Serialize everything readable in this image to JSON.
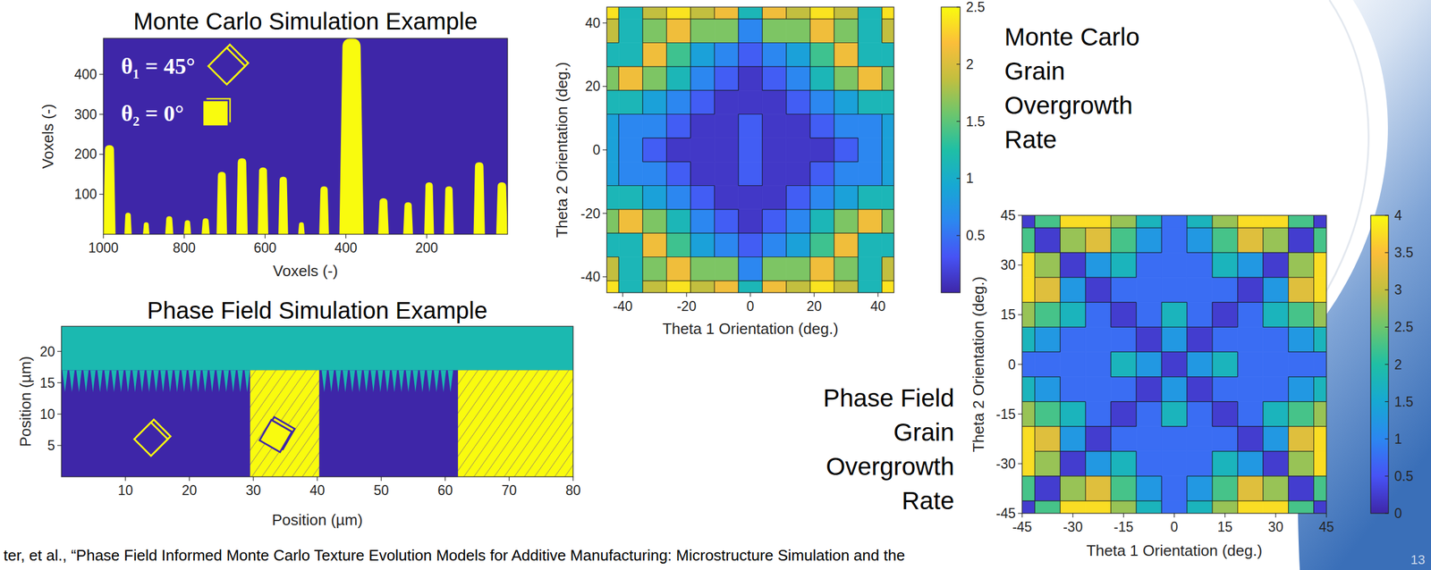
{
  "chart_data": [
    {
      "type": "grain_map",
      "title": "Monte Carlo Simulation Example",
      "x_label": "Voxels (-)",
      "y_label": "Voxels (-)",
      "xlim": [
        1000,
        0
      ],
      "xticks": [
        1000,
        800,
        600,
        400,
        200
      ],
      "ylim": [
        0,
        490
      ],
      "yticks": [
        100,
        200,
        300,
        400
      ],
      "grains": {
        "x": [
          985,
          939,
          894,
          837,
          792,
          747,
          707,
          657,
          605,
          555,
          510,
          454,
          386,
          307,
          246,
          194,
          145,
          70,
          14
        ],
        "width": [
          30,
          18,
          16,
          20,
          18,
          20,
          26,
          28,
          26,
          24,
          16,
          24,
          60,
          26,
          24,
          24,
          24,
          28,
          28
        ],
        "height": [
          223,
          54,
          30,
          45,
          35,
          40,
          156,
          190,
          167,
          144,
          30,
          120,
          490,
          90,
          80,
          130,
          120,
          180,
          130
        ]
      },
      "annotations": [
        {
          "text": "θ₁ = 45°",
          "angle": 45,
          "color": "#3e26a8"
        },
        {
          "text": "θ₂ = 0°",
          "angle": 0,
          "color": "#f9fb0e"
        }
      ]
    },
    {
      "type": "grain_map",
      "title": "Phase Field Simulation Example",
      "x_label": "Position (µm)",
      "y_label": "Position (µm)",
      "xlim": [
        0,
        80
      ],
      "xticks": [
        10,
        20,
        30,
        40,
        50,
        60,
        70,
        80
      ],
      "ylim": [
        0,
        24
      ],
      "yticks": [
        5,
        10,
        15,
        20
      ],
      "mushy_zone": [
        13.5,
        17
      ],
      "grains": {
        "x0": [
          29.5,
          62
        ],
        "x1": [
          40.3,
          80
        ]
      },
      "icons": [
        {
          "x": 14,
          "y": 6,
          "angle": 45,
          "color": "#3e26a8"
        },
        {
          "x": 33.5,
          "y": 6.5,
          "angle": 30,
          "color": "#f9fb0e"
        }
      ]
    },
    {
      "type": "contour",
      "title": "Monte Carlo Grain Overgrowth Rate",
      "x_label": "Theta 1 Orientation (deg.)",
      "y_label": "Theta 2 Orientation (deg.)",
      "xlim": [
        -45,
        45
      ],
      "xticks": [
        -40,
        -20,
        0,
        20,
        40
      ],
      "ylim": [
        -45,
        45
      ],
      "yticks": [
        -40,
        -20,
        0,
        20,
        40
      ],
      "x": [
        -45,
        -37.5,
        -30,
        -22.5,
        -15,
        -7.5,
        0,
        7.5,
        15,
        22.5,
        30,
        37.5,
        45
      ],
      "y": [
        45,
        37.5,
        30,
        22.5,
        15,
        7.5,
        0,
        -7.5,
        -15,
        -22.5,
        -30,
        -37.5,
        -45
      ],
      "cells": [
        [
          2.5,
          1.2,
          1.8,
          2.5,
          1.8,
          2.2,
          1,
          2.2,
          1.8,
          2.5,
          1.8,
          1.2,
          2.5
        ],
        [
          1.8,
          1,
          1.5,
          2,
          1.6,
          1.5,
          0.7,
          1.5,
          1.6,
          2,
          1.5,
          1,
          1.8
        ],
        [
          1,
          1.2,
          2,
          1.4,
          0.9,
          0.6,
          0.3,
          0.6,
          0.9,
          1.4,
          2,
          1.2,
          1
        ],
        [
          1.6,
          2,
          1.6,
          1,
          0.6,
          0.3,
          0.2,
          0.3,
          0.6,
          1,
          1.6,
          2,
          1.6
        ],
        [
          1.2,
          1,
          0.8,
          0.6,
          0.3,
          0.2,
          0.2,
          0.2,
          0.3,
          0.6,
          0.8,
          1,
          1.2
        ],
        [
          0.9,
          0.7,
          0.5,
          0.3,
          0.2,
          0.2,
          0.3,
          0.2,
          0.2,
          0.3,
          0.5,
          0.7,
          0.9
        ],
        [
          0.8,
          0.7,
          0.4,
          0.2,
          0.2,
          0.2,
          0.4,
          0.2,
          0.2,
          0.2,
          0.4,
          0.7,
          0.8
        ],
        [
          0.9,
          0.7,
          0.5,
          0.3,
          0.2,
          0.2,
          0.3,
          0.2,
          0.2,
          0.3,
          0.5,
          0.7,
          0.9
        ],
        [
          1.2,
          1,
          0.8,
          0.6,
          0.3,
          0.2,
          0.2,
          0.2,
          0.3,
          0.6,
          0.8,
          1,
          1.2
        ],
        [
          1.6,
          2,
          1.6,
          1,
          0.6,
          0.3,
          0.2,
          0.3,
          0.6,
          1,
          1.6,
          2,
          1.6
        ],
        [
          1,
          1.2,
          2,
          1.4,
          0.9,
          0.6,
          0.3,
          0.6,
          0.9,
          1.4,
          2,
          1.2,
          1
        ],
        [
          1.8,
          1,
          1.5,
          2,
          1.6,
          1.5,
          0.7,
          1.5,
          1.6,
          2,
          1.5,
          1,
          1.8
        ],
        [
          2.5,
          1.2,
          1.8,
          2.5,
          1.8,
          2.2,
          1,
          2.2,
          1.8,
          2.5,
          1.8,
          1.2,
          2.5
        ]
      ],
      "levels": [
        0,
        0.25,
        0.5,
        0.75,
        1,
        1.25,
        1.5,
        1.75,
        2,
        2.25,
        2.5
      ],
      "color_range": [
        0,
        2.5
      ],
      "color_ticks": [
        0.5,
        1,
        1.5,
        2,
        2.5
      ]
    },
    {
      "type": "contour",
      "title": "Phase Field Grain Overgrowth Rate",
      "x_label": "Theta 1 Orientation (deg.)",
      "y_label": "Theta 2 Orientation (deg.)",
      "xlim": [
        -45,
        45
      ],
      "xticks": [
        -45,
        -30,
        -15,
        0,
        15,
        30,
        45
      ],
      "ylim": [
        -45,
        45
      ],
      "yticks": [
        -45,
        -30,
        -15,
        0,
        15,
        30,
        45
      ],
      "x": [
        -45,
        -37.5,
        -30,
        -22.5,
        -15,
        -7.5,
        0,
        7.5,
        15,
        22.5,
        30,
        37.5,
        45
      ],
      "y": [
        45,
        37.5,
        30,
        22.5,
        15,
        7.5,
        0,
        -7.5,
        -15,
        -22.5,
        -30,
        -37.5,
        -45
      ],
      "cells": [
        [
          0.2,
          2,
          4,
          3.5,
          2.5,
          1.5,
          0.8,
          1.5,
          2.5,
          3.5,
          4,
          2,
          0.2
        ],
        [
          2,
          0.2,
          2.5,
          3,
          2,
          1.2,
          0.7,
          1.2,
          2,
          3,
          2.5,
          0.2,
          2
        ],
        [
          4,
          2.5,
          0.1,
          1,
          1.5,
          0.9,
          0.6,
          0.9,
          1.5,
          1,
          0.1,
          2.5,
          4
        ],
        [
          3.5,
          3,
          1,
          0.1,
          0.8,
          0.6,
          0.5,
          0.6,
          0.8,
          0.1,
          1,
          3,
          3.5
        ],
        [
          2.5,
          2,
          1.5,
          0.8,
          0.1,
          0.6,
          1.8,
          0.6,
          0.1,
          0.8,
          1.5,
          2,
          2.5
        ],
        [
          1.5,
          1.2,
          0.9,
          0.6,
          0.6,
          0.2,
          1,
          0.2,
          0.6,
          0.6,
          0.9,
          1.2,
          1.5
        ],
        [
          0.8,
          0.7,
          0.6,
          0.5,
          1.8,
          1,
          0.3,
          1,
          1.8,
          0.5,
          0.6,
          0.7,
          0.8
        ],
        [
          1.5,
          1.2,
          0.9,
          0.6,
          0.6,
          0.2,
          1,
          0.2,
          0.6,
          0.6,
          0.9,
          1.2,
          1.5
        ],
        [
          2.5,
          2,
          1.5,
          0.8,
          0.1,
          0.6,
          1.8,
          0.6,
          0.1,
          0.8,
          1.5,
          2,
          2.5
        ],
        [
          3.5,
          3,
          1,
          0.1,
          0.8,
          0.6,
          0.5,
          0.6,
          0.8,
          0.1,
          1,
          3,
          3.5
        ],
        [
          4,
          2.5,
          0.1,
          1,
          1.5,
          0.9,
          0.6,
          0.9,
          1.5,
          1,
          0.1,
          2.5,
          4
        ],
        [
          2,
          0.2,
          2.5,
          3,
          2,
          1.2,
          0.7,
          1.2,
          2,
          3,
          2.5,
          0.2,
          2
        ],
        [
          0.2,
          2,
          4,
          3.5,
          2.5,
          1.5,
          0.8,
          1.5,
          2.5,
          3.5,
          4,
          2,
          0.2
        ]
      ],
      "levels": [
        0,
        0.5,
        1,
        1.5,
        2,
        2.5,
        3,
        3.5,
        4
      ],
      "color_range": [
        0,
        4
      ],
      "color_ticks": [
        0,
        0.5,
        1,
        1.5,
        2,
        2.5,
        3,
        3.5,
        4
      ]
    }
  ],
  "footer": {
    "citation": "ter, et al., “Phase Field Informed Monte Carlo Texture Evolution Models for Additive Manufacturing: Microstructure Simulation and the",
    "page": "13"
  }
}
